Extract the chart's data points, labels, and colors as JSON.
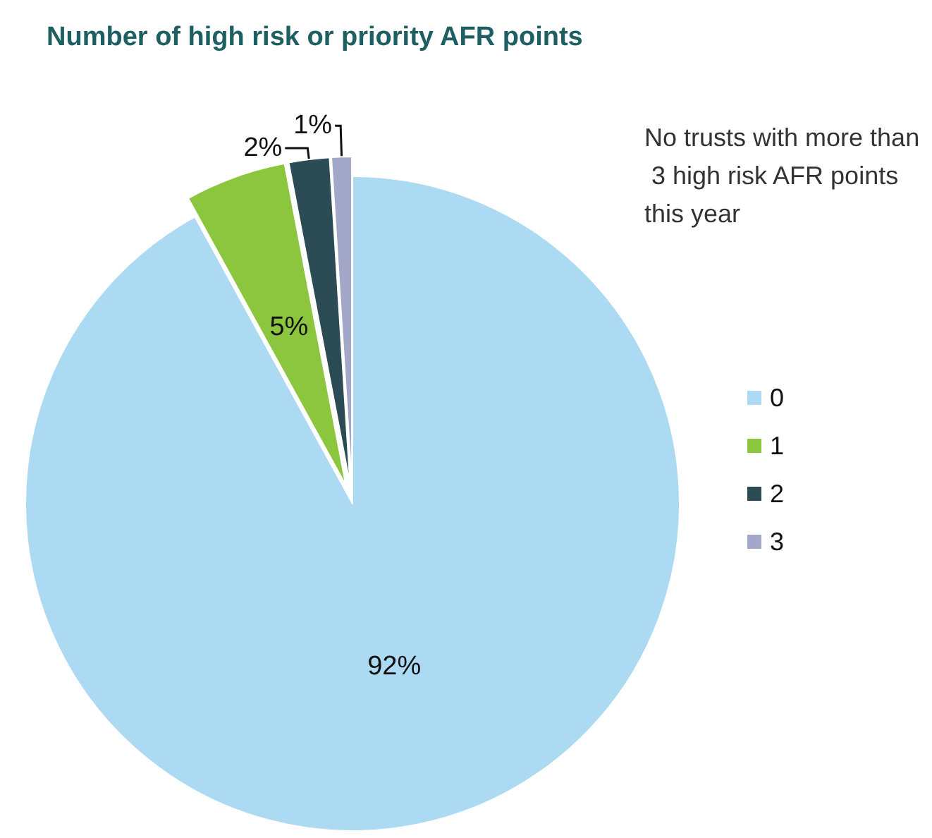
{
  "chart_data": {
    "type": "pie",
    "title": "Number of high risk or priority AFR points",
    "categories": [
      "0",
      "1",
      "2",
      "3"
    ],
    "values": [
      92,
      5,
      2,
      1
    ],
    "value_labels": [
      "92%",
      "5%",
      "2%",
      "1%"
    ],
    "colors": [
      "#acdaf2",
      "#8cc63e",
      "#2b4c55",
      "#a3a8c8"
    ],
    "annotations": [
      "No trusts with more than 3 high risk AFR points this year"
    ],
    "legend": "right"
  }
}
